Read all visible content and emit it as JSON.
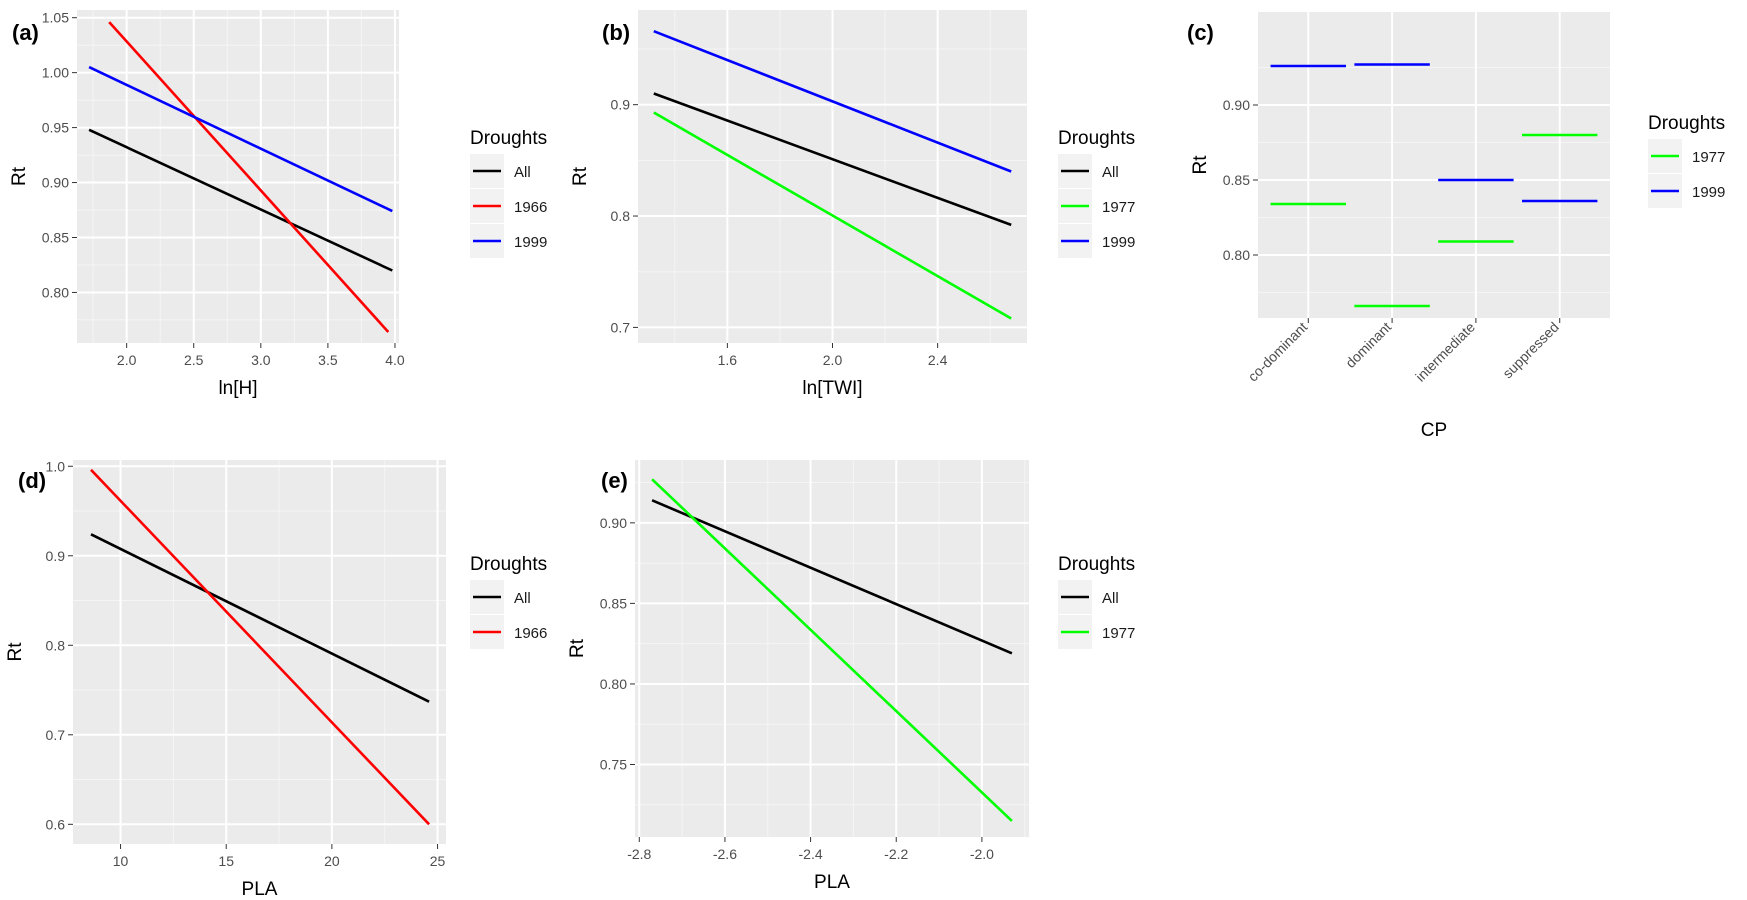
{
  "chart_data": [
    {
      "panel_label": "(a)",
      "type": "line",
      "xlabel": "ln[H]",
      "ylabel": "Rt",
      "xlim": [
        1.63,
        4.03
      ],
      "ylim": [
        0.754,
        1.057
      ],
      "xticks": [
        2.0,
        2.5,
        3.0,
        3.5,
        4.0
      ],
      "xtick_labels": [
        "2.0",
        "2.5",
        "3.0",
        "3.5",
        "4.0"
      ],
      "yticks": [
        0.8,
        0.85,
        0.9,
        0.95,
        1.0,
        1.05
      ],
      "ytick_labels": [
        "0.80",
        "0.85",
        "0.90",
        "0.95",
        "1.00",
        "1.05"
      ],
      "grid": true,
      "legend_title": "Droughts",
      "legend_position": "right",
      "series": [
        {
          "name": "All",
          "color": "#000000",
          "x": [
            1.72,
            3.98
          ],
          "y": [
            0.948,
            0.82
          ]
        },
        {
          "name": "1966",
          "color": "#ff0000",
          "x": [
            1.87,
            3.95
          ],
          "y": [
            1.046,
            0.764
          ]
        },
        {
          "name": "1999",
          "color": "#0000ff",
          "x": [
            1.72,
            3.98
          ],
          "y": [
            1.005,
            0.874
          ]
        }
      ]
    },
    {
      "panel_label": "(b)",
      "type": "line",
      "xlabel": "ln[TWI]",
      "ylabel": "Rt",
      "xlim": [
        1.26,
        2.74
      ],
      "ylim": [
        0.686,
        0.985
      ],
      "xticks": [
        1.6,
        2.0,
        2.4
      ],
      "xtick_labels": [
        "1.6",
        "2.0",
        "2.4"
      ],
      "yticks": [
        0.7,
        0.8,
        0.9
      ],
      "ytick_labels": [
        "0.7",
        "0.8",
        "0.9"
      ],
      "grid": true,
      "legend_title": "Droughts",
      "legend_position": "right",
      "series": [
        {
          "name": "All",
          "color": "#000000",
          "x": [
            1.32,
            2.68
          ],
          "y": [
            0.91,
            0.792
          ]
        },
        {
          "name": "1977",
          "color": "#00ff00",
          "x": [
            1.32,
            2.68
          ],
          "y": [
            0.893,
            0.708
          ]
        },
        {
          "name": "1999",
          "color": "#0000ff",
          "x": [
            1.32,
            2.68
          ],
          "y": [
            0.966,
            0.84
          ]
        }
      ]
    },
    {
      "panel_label": "(c)",
      "type": "line",
      "xlabel": "CP",
      "ylabel": "Rt",
      "categories": [
        "co-dominant",
        "dominant",
        "intermediate",
        "suppressed"
      ],
      "ylim": [
        0.758,
        0.962
      ],
      "yticks": [
        0.8,
        0.85,
        0.9
      ],
      "ytick_labels": [
        "0.80",
        "0.85",
        "0.90"
      ],
      "grid": true,
      "legend_title": "Droughts",
      "legend_position": "right",
      "series": [
        {
          "name": "1977",
          "color": "#00ff00",
          "values": [
            0.834,
            0.766,
            0.809,
            0.88
          ]
        },
        {
          "name": "1999",
          "color": "#0000ff",
          "values": [
            0.926,
            0.927,
            0.85,
            0.836
          ]
        }
      ]
    },
    {
      "panel_label": "(d)",
      "type": "line",
      "xlabel": "PLA",
      "ylabel": "Rt",
      "xlim": [
        7.75,
        25.4
      ],
      "ylim": [
        0.578,
        1.007
      ],
      "xticks": [
        10,
        15,
        20,
        25
      ],
      "xtick_labels": [
        "10",
        "15",
        "20",
        "25"
      ],
      "yticks": [
        0.6,
        0.7,
        0.8,
        0.9,
        1.0
      ],
      "ytick_labels": [
        "0.6",
        "0.7",
        "0.8",
        "0.9",
        "1.0"
      ],
      "grid": true,
      "legend_title": "Droughts",
      "legend_position": "right",
      "series": [
        {
          "name": "All",
          "color": "#000000",
          "x": [
            8.6,
            24.6
          ],
          "y": [
            0.924,
            0.737
          ]
        },
        {
          "name": "1966",
          "color": "#ff0000",
          "x": [
            8.6,
            24.6
          ],
          "y": [
            0.996,
            0.6
          ]
        }
      ]
    },
    {
      "panel_label": "(e)",
      "type": "line",
      "xlabel": "PLA",
      "ylabel": "Rt",
      "xlim": [
        -2.81,
        -1.89
      ],
      "ylim": [
        0.705,
        0.939
      ],
      "xticks": [
        -2.8,
        -2.6,
        -2.4,
        -2.2,
        -2.0
      ],
      "xtick_labels": [
        "-2.8",
        "-2.6",
        "-2.4",
        "-2.2",
        "-2.0"
      ],
      "yticks": [
        0.75,
        0.8,
        0.85,
        0.9
      ],
      "ytick_labels": [
        "0.75",
        "0.80",
        "0.85",
        "0.90"
      ],
      "grid": true,
      "legend_title": "Droughts",
      "legend_position": "right",
      "series": [
        {
          "name": "All",
          "color": "#000000",
          "x": [
            -2.77,
            -1.93
          ],
          "y": [
            0.914,
            0.819
          ]
        },
        {
          "name": "1977",
          "color": "#00ff00",
          "x": [
            -2.77,
            -1.93
          ],
          "y": [
            0.927,
            0.715
          ]
        }
      ]
    }
  ],
  "theme": {
    "panel_background": "#ebebeb",
    "grid_major": "#ffffff",
    "tick_text": "#4d4d4d",
    "axis_title": "#000000"
  }
}
